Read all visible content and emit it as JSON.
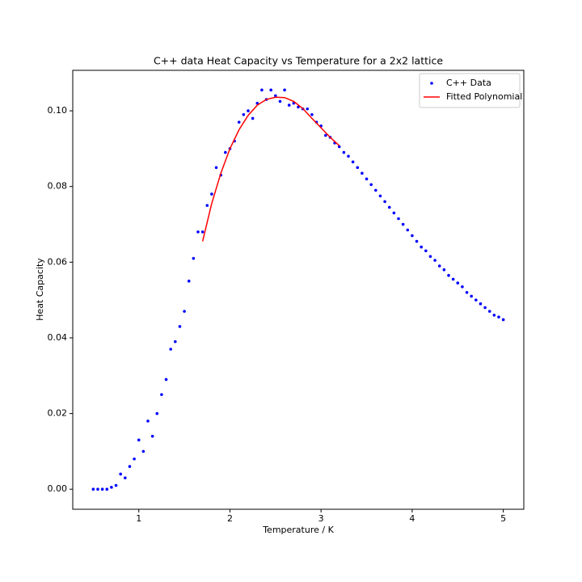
{
  "chart_data": {
    "type": "scatter",
    "title": "C++ data Heat Capacity vs Temperature for a 2x2 lattice",
    "xlabel": "Temperature / K",
    "ylabel": "Heat Capacity",
    "xlim": [
      0.275,
      5.225
    ],
    "ylim": [
      -0.0053,
      0.1107
    ],
    "xticks": [
      1,
      2,
      3,
      4,
      5
    ],
    "yticks": [
      {
        "value": 0,
        "label": "0.00"
      },
      {
        "value": 0.02,
        "label": "0.02"
      },
      {
        "value": 0.04,
        "label": "0.04"
      },
      {
        "value": 0.06,
        "label": "0.06"
      },
      {
        "value": 0.08,
        "label": "0.08"
      },
      {
        "value": 0.1,
        "label": "0.10"
      }
    ],
    "legend": "upper right",
    "series": [
      {
        "name": "C++ Data",
        "type": "scatter",
        "color": "#0000ff",
        "x": [
          0.5,
          0.55,
          0.6,
          0.65,
          0.7,
          0.75,
          0.8,
          0.85,
          0.9,
          0.95,
          1.0,
          1.05,
          1.1,
          1.15,
          1.2,
          1.25,
          1.3,
          1.35,
          1.4,
          1.45,
          1.5,
          1.55,
          1.6,
          1.65,
          1.7,
          1.75,
          1.8,
          1.85,
          1.9,
          1.95,
          2.0,
          2.05,
          2.1,
          2.15,
          2.2,
          2.25,
          2.3,
          2.35,
          2.4,
          2.45,
          2.5,
          2.55,
          2.6,
          2.65,
          2.7,
          2.75,
          2.8,
          2.85,
          2.9,
          2.95,
          3.0,
          3.05,
          3.1,
          3.15,
          3.2,
          3.25,
          3.3,
          3.35,
          3.4,
          3.45,
          3.5,
          3.55,
          3.6,
          3.65,
          3.7,
          3.75,
          3.8,
          3.85,
          3.9,
          3.95,
          4.0,
          4.05,
          4.1,
          4.15,
          4.2,
          4.25,
          4.3,
          4.35,
          4.4,
          4.45,
          4.5,
          4.55,
          4.6,
          4.65,
          4.7,
          4.75,
          4.8,
          4.85,
          4.9,
          4.95,
          5.0
        ],
        "values": [
          0.0,
          0.0,
          0.0,
          0.0,
          0.0005,
          0.001,
          0.004,
          0.003,
          0.006,
          0.008,
          0.013,
          0.01,
          0.018,
          0.014,
          0.02,
          0.025,
          0.029,
          0.037,
          0.039,
          0.043,
          0.047,
          0.055,
          0.061,
          0.068,
          0.068,
          0.075,
          0.078,
          0.085,
          0.083,
          0.089,
          0.09,
          0.092,
          0.097,
          0.099,
          0.1,
          0.098,
          0.102,
          0.1055,
          0.103,
          0.1055,
          0.104,
          0.1025,
          0.1055,
          0.1015,
          0.102,
          0.101,
          0.1005,
          0.1005,
          0.099,
          0.097,
          0.096,
          0.0935,
          0.093,
          0.0915,
          0.0905,
          0.089,
          0.088,
          0.0865,
          0.085,
          0.0835,
          0.082,
          0.0805,
          0.079,
          0.0775,
          0.076,
          0.0745,
          0.073,
          0.0715,
          0.07,
          0.0685,
          0.067,
          0.0655,
          0.064,
          0.063,
          0.0615,
          0.0605,
          0.059,
          0.058,
          0.0565,
          0.0555,
          0.0545,
          0.0535,
          0.052,
          0.051,
          0.05,
          0.049,
          0.048,
          0.047,
          0.046,
          0.0455,
          0.0448
        ]
      },
      {
        "name": "Fitted Polynomial",
        "type": "line",
        "color": "#ff0000",
        "x": [
          1.7,
          1.8,
          1.9,
          2.0,
          2.1,
          2.2,
          2.3,
          2.4,
          2.5,
          2.6,
          2.7,
          2.8,
          2.9,
          3.0,
          3.1,
          3.2
        ],
        "values": [
          0.0655,
          0.0755,
          0.0835,
          0.09,
          0.095,
          0.0988,
          0.1015,
          0.103,
          0.1036,
          0.1035,
          0.1025,
          0.1006,
          0.098,
          0.0955,
          0.093,
          0.0908
        ]
      }
    ]
  }
}
